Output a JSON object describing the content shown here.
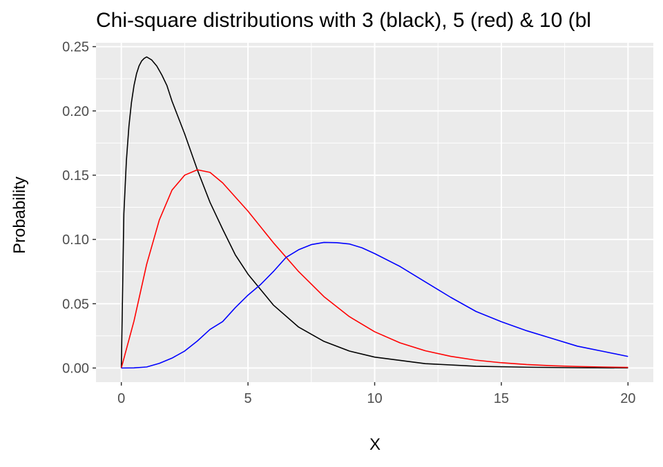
{
  "chart_data": {
    "type": "line",
    "title": "Chi-square distributions with 3 (black), 5 (red) & 10 (bl",
    "xlabel": "X",
    "ylabel": "Probability",
    "xlim": [
      -1,
      21
    ],
    "ylim": [
      -0.011,
      0.253
    ],
    "x_ticks": [
      0,
      5,
      10,
      15,
      20
    ],
    "x_tick_labels": [
      "0",
      "5",
      "10",
      "15",
      "20"
    ],
    "y_ticks": [
      0,
      0.05,
      0.1,
      0.15,
      0.2,
      0.25
    ],
    "y_tick_labels": [
      "0.00",
      "0.05",
      "0.10",
      "0.15",
      "0.20",
      "0.25"
    ],
    "grid": true,
    "legend": "none",
    "panel_background": "#ebebeb",
    "series": [
      {
        "color": "#000000",
        "points": [
          [
            0,
            0
          ],
          [
            0.1,
            0.12
          ],
          [
            0.2,
            0.1614
          ],
          [
            0.3,
            0.1881
          ],
          [
            0.4,
            0.2066
          ],
          [
            0.5,
            0.2197
          ],
          [
            0.6,
            0.2289
          ],
          [
            0.7,
            0.235
          ],
          [
            0.8,
            0.2388
          ],
          [
            0.9,
            0.2408
          ],
          [
            1.0,
            0.242
          ],
          [
            1.2,
            0.2396
          ],
          [
            1.4,
            0.2349
          ],
          [
            1.6,
            0.2279
          ],
          [
            1.8,
            0.2197
          ],
          [
            2.0,
            0.2076
          ],
          [
            2.5,
            0.1821
          ],
          [
            3.0,
            0.1542
          ],
          [
            3.5,
            0.1289
          ],
          [
            4.0,
            0.108
          ],
          [
            4.5,
            0.088
          ],
          [
            5.0,
            0.073
          ],
          [
            6.0,
            0.049
          ],
          [
            7.0,
            0.0318
          ],
          [
            8.0,
            0.0207
          ],
          [
            9.0,
            0.0132
          ],
          [
            10,
            0.0085
          ],
          [
            12,
            0.0034
          ],
          [
            14,
            0.0014
          ],
          [
            16,
            0.0006
          ],
          [
            18,
            0.0002
          ],
          [
            20,
            0.0001
          ]
        ]
      },
      {
        "color": "#ff0000",
        "points": [
          [
            0,
            0
          ],
          [
            0.5,
            0.0366
          ],
          [
            1.0,
            0.0807
          ],
          [
            1.5,
            0.1152
          ],
          [
            2.0,
            0.1384
          ],
          [
            2.5,
            0.15
          ],
          [
            3.0,
            0.1542
          ],
          [
            3.5,
            0.1522
          ],
          [
            4.0,
            0.144
          ],
          [
            5.0,
            0.122
          ],
          [
            6.0,
            0.0975
          ],
          [
            7.0,
            0.075
          ],
          [
            8.0,
            0.0555
          ],
          [
            9.0,
            0.04
          ],
          [
            10,
            0.0282
          ],
          [
            11,
            0.0196
          ],
          [
            12,
            0.0134
          ],
          [
            13,
            0.0091
          ],
          [
            14,
            0.0061
          ],
          [
            15,
            0.0041
          ],
          [
            16,
            0.0027
          ],
          [
            17,
            0.0018
          ],
          [
            18,
            0.0012
          ],
          [
            19,
            0.0008
          ],
          [
            20,
            0.0005
          ]
        ]
      },
      {
        "color": "#0000ff",
        "points": [
          [
            0,
            0
          ],
          [
            0.5,
            0.0001
          ],
          [
            1.0,
            0.0008
          ],
          [
            1.5,
            0.0036
          ],
          [
            2.0,
            0.0077
          ],
          [
            2.5,
            0.0132
          ],
          [
            3.0,
            0.021
          ],
          [
            3.5,
            0.03
          ],
          [
            4.0,
            0.0361
          ],
          [
            4.5,
            0.047
          ],
          [
            5.0,
            0.0567
          ],
          [
            5.5,
            0.065
          ],
          [
            6.0,
            0.075
          ],
          [
            6.5,
            0.086
          ],
          [
            7.0,
            0.092
          ],
          [
            7.5,
            0.096
          ],
          [
            8.0,
            0.0977
          ],
          [
            8.5,
            0.0975
          ],
          [
            9.0,
            0.0965
          ],
          [
            9.5,
            0.0935
          ],
          [
            10,
            0.089
          ],
          [
            11,
            0.079
          ],
          [
            12,
            0.067
          ],
          [
            13,
            0.055
          ],
          [
            14,
            0.044
          ],
          [
            15,
            0.036
          ],
          [
            16,
            0.029
          ],
          [
            17,
            0.023
          ],
          [
            18,
            0.017
          ],
          [
            19,
            0.013
          ],
          [
            20,
            0.009
          ]
        ]
      }
    ]
  }
}
